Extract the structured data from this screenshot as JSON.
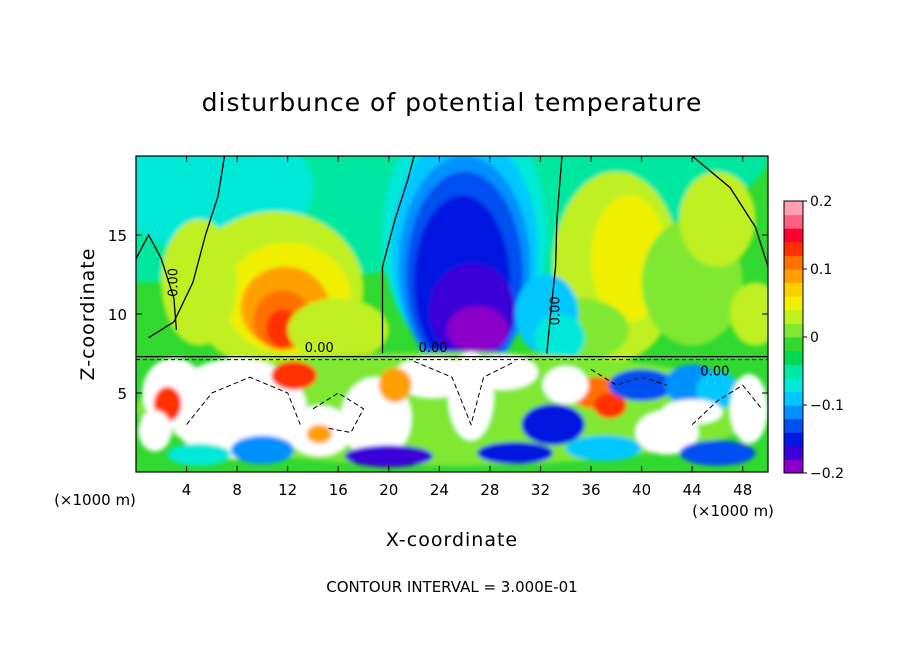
{
  "chart_data": {
    "type": "heatmap",
    "title": "disturbunce of potential temperature",
    "xlabel": "X-coordinate",
    "ylabel": "Z-coordinate",
    "x_unit_label": "(×1000 m)",
    "x_unit_label_right": "(×1000 m)",
    "xlim": [
      0,
      50
    ],
    "ylim": [
      0,
      20
    ],
    "x_ticks": [
      4,
      8,
      12,
      16,
      20,
      24,
      28,
      32,
      36,
      40,
      44,
      48
    ],
    "y_ticks": [
      5,
      10,
      15
    ],
    "colorbar": {
      "range": [
        -0.2,
        0.2
      ],
      "tick_values": [
        -0.2,
        -0.1,
        0,
        0.1,
        0.2
      ],
      "tick_labels": [
        "−0.2",
        "−0.1",
        "0",
        "0.1",
        "0.2"
      ],
      "colors": [
        "#8a00c8",
        "#3a00d8",
        "#0018e0",
        "#0050f0",
        "#0090ff",
        "#00c8ff",
        "#00e8d8",
        "#00e8a0",
        "#00d850",
        "#30d830",
        "#80e830",
        "#c0f020",
        "#f0f000",
        "#ffd000",
        "#ffa000",
        "#ff7000",
        "#ff3000",
        "#ff0030",
        "#ff6080",
        "#ffa0b0"
      ]
    },
    "contour_labels": [
      "0.00",
      "0.00",
      "0.00",
      "0.00",
      "0.00"
    ],
    "annotation": "CONTOUR INTERVAL = 3.000E-01",
    "grid": false
  }
}
